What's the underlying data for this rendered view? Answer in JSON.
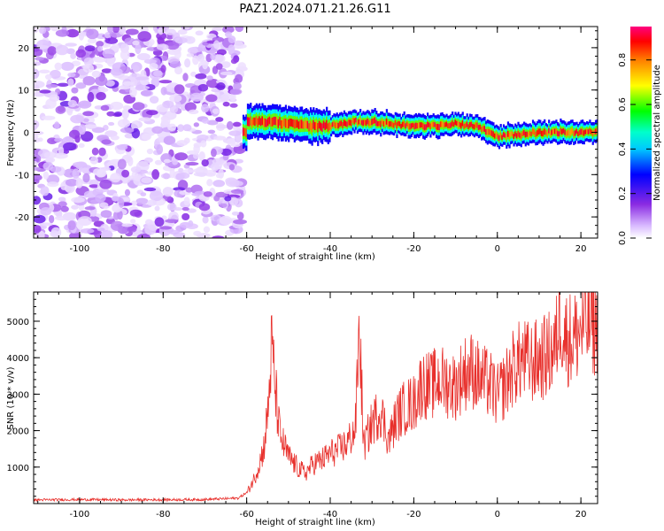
{
  "title": "PAZ1.2024.071.21.26.G11",
  "chart_data": [
    {
      "type": "heatmap",
      "xlabel": "Height of straight line (km)",
      "ylabel": "Frequency (Hz)",
      "xlim": [
        -111,
        24
      ],
      "ylim": [
        -25,
        25
      ],
      "xticks": [
        -100,
        -80,
        -60,
        -40,
        -20,
        0,
        20
      ],
      "yticks": [
        -20,
        -10,
        0,
        10,
        20
      ],
      "colorbar": {
        "label": "Normalized spectral amplitude",
        "range": [
          0.0,
          0.95
        ],
        "ticks": [
          0.0,
          0.2,
          0.4,
          0.6,
          0.8
        ],
        "colormap": [
          "#ffffff",
          "#d8b8ff",
          "#8a2be2",
          "#0000ff",
          "#00ffff",
          "#00ff00",
          "#ffff00",
          "#ff8000",
          "#ff0000",
          "#ff0080"
        ]
      },
      "regions": [
        {
          "x": [
            -111,
            -61
          ],
          "y": [
            -25,
            25
          ],
          "amplitude": [
            0.05,
            0.25
          ],
          "description": "noise"
        },
        {
          "x": [
            -61,
            24
          ],
          "y": [
            -2,
            5
          ],
          "amplitude": [
            0.2,
            0.95
          ],
          "description": "signal"
        }
      ],
      "signal_center_frequency": [
        {
          "x": -60,
          "y": 2.5
        },
        {
          "x": -55,
          "y": 2.5
        },
        {
          "x": -50,
          "y": 2
        },
        {
          "x": -45,
          "y": 1.5
        },
        {
          "x": -40,
          "y": 1.5
        },
        {
          "x": -35,
          "y": 2.5
        },
        {
          "x": -30,
          "y": 2.5
        },
        {
          "x": -25,
          "y": 2
        },
        {
          "x": -20,
          "y": 1.5
        },
        {
          "x": -15,
          "y": 1.5
        },
        {
          "x": -10,
          "y": 2
        },
        {
          "x": -5,
          "y": 1.5
        },
        {
          "x": 0,
          "y": -1
        },
        {
          "x": 5,
          "y": -0.5
        },
        {
          "x": 10,
          "y": 0
        },
        {
          "x": 15,
          "y": 0
        },
        {
          "x": 20,
          "y": 0
        }
      ]
    },
    {
      "type": "line",
      "xlabel": "Height of straight line (km)",
      "ylabel": "SNR (10 * v/v)",
      "xlim": [
        -111,
        24
      ],
      "ylim": [
        0,
        5800
      ],
      "xticks": [
        -100,
        -80,
        -60,
        -40,
        -20,
        0,
        20
      ],
      "yticks": [
        1000,
        2000,
        3000,
        4000,
        5000
      ],
      "color": "#e8302c",
      "series": [
        {
          "x": [
            -111,
            -100,
            -90,
            -80,
            -70,
            -62,
            -60,
            -58,
            -56,
            -55,
            -54,
            -53,
            -52,
            -50,
            -48,
            -46,
            -44,
            -42,
            -40,
            -38,
            -36,
            -34,
            -33,
            -32,
            -30,
            -28,
            -26,
            -24,
            -22,
            -20,
            -18,
            -16,
            -14,
            -12,
            -10,
            -8,
            -6,
            -4,
            -2,
            0,
            2,
            4,
            6,
            8,
            10,
            12,
            14,
            15,
            16,
            18,
            20,
            22,
            24
          ],
          "values": [
            100,
            110,
            100,
            105,
            110,
            150,
            300,
            800,
            1600,
            2600,
            4700,
            3200,
            2000,
            1400,
            1100,
            900,
            1200,
            1300,
            1500,
            1600,
            1800,
            2200,
            5300,
            1700,
            2400,
            2800,
            1900,
            2600,
            2900,
            3000,
            3600,
            3500,
            3700,
            3600,
            3500,
            3900,
            4000,
            3700,
            3600,
            3200,
            3600,
            4100,
            4300,
            4200,
            4300,
            4400,
            4700,
            5800,
            5000,
            4900,
            5200,
            5400,
            5300
          ]
        }
      ]
    }
  ]
}
